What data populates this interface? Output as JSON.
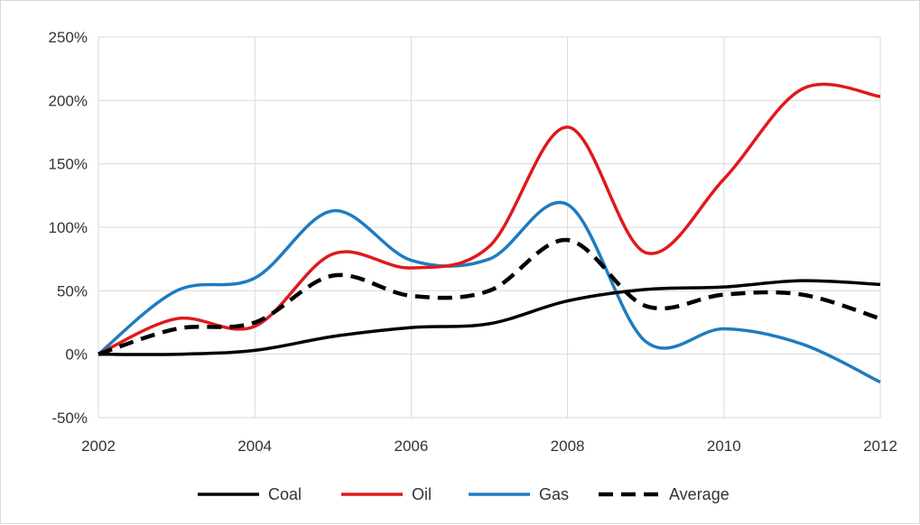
{
  "chart_data": {
    "type": "line",
    "x": [
      2002,
      2003,
      2004,
      2005,
      2006,
      2007,
      2008,
      2009,
      2010,
      2011,
      2012
    ],
    "xlim": [
      2002,
      2012
    ],
    "ylim": [
      -50,
      250
    ],
    "x_ticks": [
      "2002",
      "2004",
      "2006",
      "2008",
      "2010",
      "2012"
    ],
    "y_ticks": [
      "-50%",
      "0%",
      "50%",
      "100%",
      "150%",
      "200%",
      "250%"
    ],
    "grid": "vertical and horizontal",
    "legend_position": "bottom",
    "series": [
      {
        "name": "Coal",
        "color": "#000000",
        "dash": "solid",
        "values": [
          0,
          0,
          3,
          14,
          21,
          24,
          42,
          51,
          53,
          58,
          55
        ]
      },
      {
        "name": "Oil",
        "color": "#e0191b",
        "dash": "solid",
        "values": [
          0,
          28,
          22,
          79,
          68,
          85,
          179,
          80,
          138,
          209,
          203
        ]
      },
      {
        "name": "Gas",
        "color": "#1f7bc0",
        "dash": "solid",
        "values": [
          0,
          50,
          60,
          113,
          74,
          75,
          118,
          10,
          20,
          8,
          -22
        ]
      },
      {
        "name": "Average",
        "color": "#000000",
        "dash": "dashed",
        "values": [
          0,
          20,
          25,
          62,
          46,
          50,
          90,
          38,
          47,
          47,
          28
        ]
      }
    ]
  }
}
